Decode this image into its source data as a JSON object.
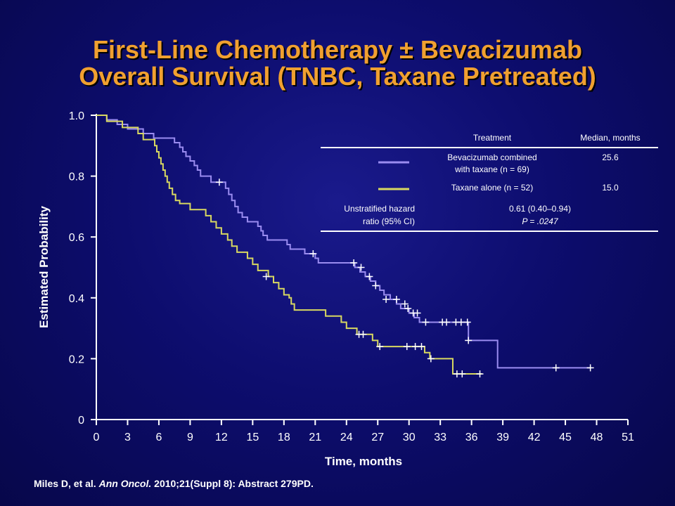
{
  "slide": {
    "title_line1": "First-Line Chemotherapy ± Bevacizumab",
    "title_line2": "Overall Survival (TNBC, Taxane Pretreated)",
    "citation_authors": "Miles D, et al. ",
    "citation_journal": "Ann Oncol.",
    "citation_rest": " 2010;21(Suppl 8): Abstract 279PD."
  },
  "colors": {
    "title": "#f0a030",
    "bevacizumab": "#9a8cf0",
    "taxane": "#d8d860",
    "axis": "#ffffff",
    "background": "#0d0d6e"
  },
  "legend_table": {
    "header_treatment": "Treatment",
    "header_median": "Median, months",
    "rows": [
      {
        "treatment_line1": "Bevacizumab combined",
        "treatment_line2": "with taxane (n = 69)",
        "median": "25.6"
      },
      {
        "treatment_line1": "Taxane alone (n = 52)",
        "treatment_line2": "",
        "median": "15.0"
      }
    ],
    "hr_label_line1": "Unstratified hazard",
    "hr_label_line2": "ratio (95% CI)",
    "hr_value": "0.61 (0.40–0.94)",
    "p_value": "P = .0247"
  },
  "chart_data": {
    "type": "line",
    "step": true,
    "xlabel": "Time, months",
    "ylabel": "Estimated Probability",
    "xlim": [
      0,
      51
    ],
    "ylim": [
      0,
      1
    ],
    "x_ticks": [
      0,
      3,
      6,
      9,
      12,
      15,
      18,
      21,
      24,
      27,
      30,
      33,
      36,
      39,
      42,
      45,
      48,
      51
    ],
    "y_ticks": [
      0,
      0.2,
      0.4,
      0.6,
      0.8,
      1.0
    ],
    "y_tick_labels": [
      "0",
      "0.2",
      "0.4",
      "0.6",
      "0.8",
      "1.0"
    ],
    "series": [
      {
        "name": "Bevacizumab combined with taxane (n = 69)",
        "color": "#9a8cf0",
        "points": [
          [
            0,
            1.0
          ],
          [
            1,
            0.985
          ],
          [
            2,
            0.97
          ],
          [
            3,
            0.955
          ],
          [
            4.5,
            0.94
          ],
          [
            5.5,
            0.925
          ],
          [
            7.5,
            0.91
          ],
          [
            8,
            0.895
          ],
          [
            8.3,
            0.88
          ],
          [
            8.6,
            0.865
          ],
          [
            9,
            0.85
          ],
          [
            9.4,
            0.835
          ],
          [
            9.7,
            0.82
          ],
          [
            10,
            0.8
          ],
          [
            11,
            0.78
          ],
          [
            12.4,
            0.76
          ],
          [
            12.7,
            0.74
          ],
          [
            13,
            0.72
          ],
          [
            13.3,
            0.7
          ],
          [
            13.6,
            0.68
          ],
          [
            14,
            0.665
          ],
          [
            14.5,
            0.65
          ],
          [
            15.5,
            0.635
          ],
          [
            15.8,
            0.62
          ],
          [
            16,
            0.605
          ],
          [
            16.4,
            0.59
          ],
          [
            18.3,
            0.575
          ],
          [
            18.6,
            0.56
          ],
          [
            20,
            0.545
          ],
          [
            21,
            0.53
          ],
          [
            21.3,
            0.515
          ],
          [
            24.8,
            0.5
          ],
          [
            25.3,
            0.485
          ],
          [
            25.8,
            0.47
          ],
          [
            26.3,
            0.455
          ],
          [
            26.8,
            0.44
          ],
          [
            27.2,
            0.425
          ],
          [
            27.6,
            0.41
          ],
          [
            28.2,
            0.395
          ],
          [
            28.8,
            0.38
          ],
          [
            29.2,
            0.365
          ],
          [
            30,
            0.35
          ],
          [
            30.5,
            0.335
          ],
          [
            31,
            0.32
          ],
          [
            32,
            0.32
          ],
          [
            35.7,
            0.32
          ],
          [
            35.7,
            0.26
          ],
          [
            38.5,
            0.26
          ],
          [
            38.5,
            0.17
          ],
          [
            47.5,
            0.17
          ]
        ],
        "censors": [
          [
            11.8,
            0.78
          ],
          [
            20.8,
            0.545
          ],
          [
            24.7,
            0.515
          ],
          [
            25.4,
            0.5
          ],
          [
            26.2,
            0.47
          ],
          [
            26.8,
            0.44
          ],
          [
            27.8,
            0.395
          ],
          [
            28.8,
            0.395
          ],
          [
            29.6,
            0.38
          ],
          [
            29.9,
            0.365
          ],
          [
            30.4,
            0.35
          ],
          [
            30.8,
            0.35
          ],
          [
            31.6,
            0.32
          ],
          [
            33.2,
            0.32
          ],
          [
            33.6,
            0.32
          ],
          [
            34.5,
            0.32
          ],
          [
            35,
            0.32
          ],
          [
            35.6,
            0.32
          ],
          [
            35.7,
            0.26
          ],
          [
            44.1,
            0.17
          ],
          [
            47.4,
            0.17
          ]
        ]
      },
      {
        "name": "Taxane alone (n = 52)",
        "color": "#d8d860",
        "points": [
          [
            0,
            1.0
          ],
          [
            1,
            0.98
          ],
          [
            2.5,
            0.96
          ],
          [
            4,
            0.94
          ],
          [
            4.5,
            0.92
          ],
          [
            5.5,
            0.92
          ],
          [
            5.6,
            0.9
          ],
          [
            5.8,
            0.88
          ],
          [
            6,
            0.86
          ],
          [
            6.2,
            0.84
          ],
          [
            6.4,
            0.82
          ],
          [
            6.6,
            0.8
          ],
          [
            6.8,
            0.78
          ],
          [
            7,
            0.76
          ],
          [
            7.3,
            0.74
          ],
          [
            7.6,
            0.72
          ],
          [
            8,
            0.71
          ],
          [
            9,
            0.69
          ],
          [
            10.5,
            0.67
          ],
          [
            11,
            0.65
          ],
          [
            11.5,
            0.63
          ],
          [
            12,
            0.61
          ],
          [
            12.6,
            0.59
          ],
          [
            13,
            0.57
          ],
          [
            13.5,
            0.55
          ],
          [
            14.5,
            0.53
          ],
          [
            15,
            0.51
          ],
          [
            15.5,
            0.49
          ],
          [
            16.5,
            0.47
          ],
          [
            17,
            0.45
          ],
          [
            17.5,
            0.43
          ],
          [
            18,
            0.41
          ],
          [
            18.5,
            0.4
          ],
          [
            18.7,
            0.38
          ],
          [
            19,
            0.36
          ],
          [
            22,
            0.34
          ],
          [
            23.5,
            0.32
          ],
          [
            24,
            0.3
          ],
          [
            25,
            0.28
          ],
          [
            26.5,
            0.26
          ],
          [
            27,
            0.24
          ],
          [
            31,
            0.24
          ],
          [
            31.5,
            0.22
          ],
          [
            32,
            0.2
          ],
          [
            34,
            0.2
          ],
          [
            34.2,
            0.15
          ],
          [
            37,
            0.15
          ]
        ],
        "censors": [
          [
            16.3,
            0.47
          ],
          [
            25.2,
            0.28
          ],
          [
            25.6,
            0.28
          ],
          [
            27.2,
            0.24
          ],
          [
            29.8,
            0.24
          ],
          [
            30.6,
            0.24
          ],
          [
            31.2,
            0.24
          ],
          [
            32.1,
            0.2
          ],
          [
            34.6,
            0.15
          ],
          [
            35.1,
            0.15
          ],
          [
            36.8,
            0.15
          ]
        ]
      }
    ]
  }
}
